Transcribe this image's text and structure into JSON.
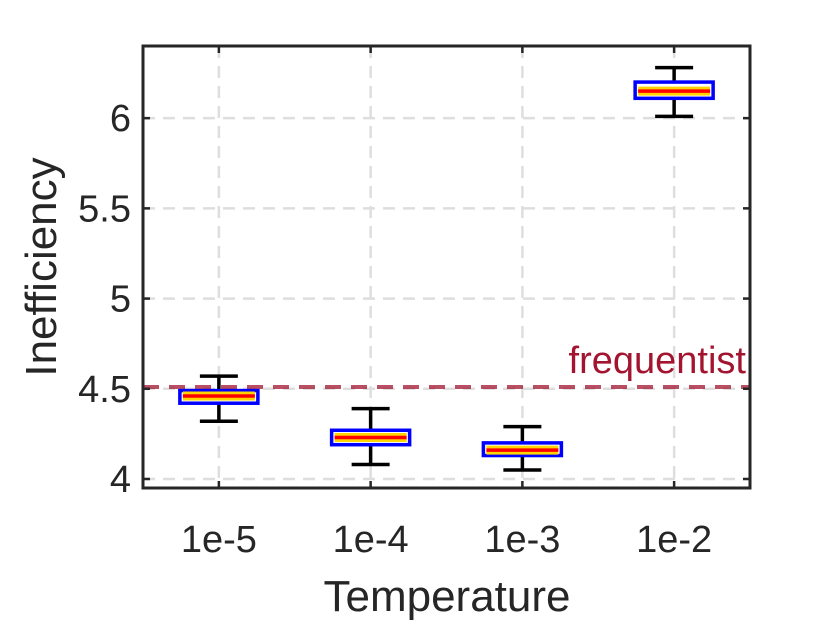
{
  "chart_data": {
    "type": "box",
    "title": "",
    "xlabel": "Temperature",
    "ylabel": "Inefficiency",
    "categories": [
      "1e-5",
      "1e-4",
      "1e-3",
      "1e-2"
    ],
    "ylim": [
      3.95,
      6.4
    ],
    "yticks": [
      4,
      4.5,
      5,
      5.5,
      6
    ],
    "ytick_labels": [
      "4",
      "4.5",
      "5",
      "5.5",
      "6"
    ],
    "grid": true,
    "boxes": [
      {
        "category": "1e-5",
        "whisker_low": 4.32,
        "q1": 4.42,
        "median": 4.46,
        "q3": 4.49,
        "whisker_high": 4.57
      },
      {
        "category": "1e-4",
        "whisker_low": 4.08,
        "q1": 4.19,
        "median": 4.23,
        "q3": 4.27,
        "whisker_high": 4.39
      },
      {
        "category": "1e-3",
        "whisker_low": 4.05,
        "q1": 4.13,
        "median": 4.16,
        "q3": 4.2,
        "whisker_high": 4.29
      },
      {
        "category": "1e-2",
        "whisker_low": 6.01,
        "q1": 6.11,
        "median": 6.15,
        "q3": 6.2,
        "whisker_high": 6.28
      }
    ],
    "reference_line": {
      "label": "frequentist",
      "value": 4.51,
      "style": "dashed"
    },
    "colors": {
      "box_edge": "#0000ff",
      "box_fill": "#ffffff",
      "median": "#ff0000",
      "median_highlight": "#ffd400",
      "whisker": "#000000",
      "reference": "#a2142f",
      "grid": "#dedede",
      "axis": "#262626"
    }
  }
}
